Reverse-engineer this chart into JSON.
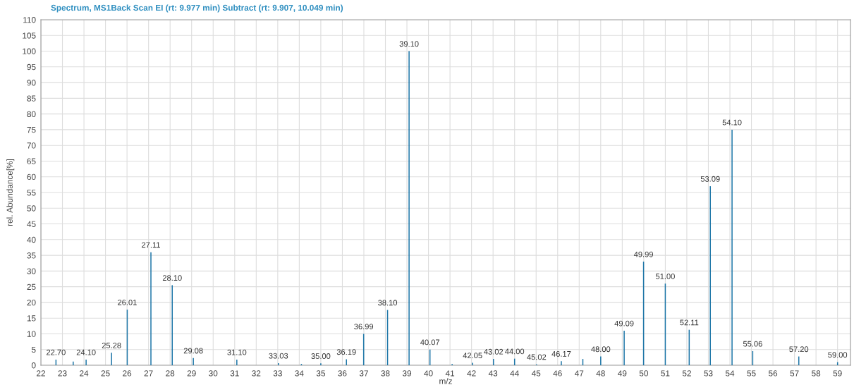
{
  "chart_data": {
    "type": "bar",
    "title": "Spectrum, MS1Back Scan EI (rt: 9.977 min) Subtract (rt: 9.907, 10.049 min)",
    "xlabel": "m/z",
    "ylabel": "rel. Abundance[%]",
    "x": [
      22.7,
      23.5,
      24.1,
      25.28,
      26.01,
      27.11,
      28.1,
      29.08,
      31.1,
      33.03,
      34.1,
      35.0,
      36.19,
      36.99,
      38.1,
      39.1,
      40.07,
      41.1,
      42.05,
      43.02,
      44.0,
      45.02,
      46.17,
      47.17,
      48.0,
      49.09,
      49.99,
      51.0,
      52.11,
      53.09,
      54.1,
      55.06,
      57.2,
      59.0
    ],
    "series": [
      {
        "color": "#1f77a8",
        "values": [
          1.8,
          1.2,
          1.8,
          4.0,
          17.7,
          36,
          25.5,
          2.3,
          1.8,
          0.7,
          0.4,
          0.6,
          1.9,
          10,
          17.6,
          100,
          5,
          0.4,
          0.8,
          2,
          2.1,
          0.3,
          1.3,
          2,
          2.8,
          11,
          33,
          26,
          11.3,
          57,
          75,
          4.5,
          2.8,
          1.0
        ]
      }
    ],
    "annotations": [
      {
        "text": "22.70",
        "x": 22.7,
        "y": 1.8
      },
      {
        "text": "24.10",
        "x": 24.1,
        "y": 1.8
      },
      {
        "text": "25.28",
        "x": 25.28,
        "y": 4.0
      },
      {
        "text": "26.01",
        "x": 26.01,
        "y": 17.7
      },
      {
        "text": "27.11",
        "x": 27.11,
        "y": 36
      },
      {
        "text": "28.10",
        "x": 28.1,
        "y": 25.5
      },
      {
        "text": "29.08",
        "x": 29.08,
        "y": 2.3
      },
      {
        "text": "31.10",
        "x": 31.1,
        "y": 1.8
      },
      {
        "text": "33.03",
        "x": 33.03,
        "y": 0.7
      },
      {
        "text": "35.00",
        "x": 35.0,
        "y": 0.6
      },
      {
        "text": "36.19",
        "x": 36.19,
        "y": 1.9
      },
      {
        "text": "36.99",
        "x": 36.99,
        "y": 10
      },
      {
        "text": "38.10",
        "x": 38.1,
        "y": 17.6
      },
      {
        "text": "39.10",
        "x": 39.1,
        "y": 100
      },
      {
        "text": "40.07",
        "x": 40.07,
        "y": 5
      },
      {
        "text": "42.05",
        "x": 42.05,
        "y": 0.8
      },
      {
        "text": "43.02",
        "x": 43.02,
        "y": 2
      },
      {
        "text": "44.00",
        "x": 44.0,
        "y": 2.1
      },
      {
        "text": "45.02",
        "x": 45.02,
        "y": 0.3
      },
      {
        "text": "46.17",
        "x": 46.17,
        "y": 1.3
      },
      {
        "text": "48.00",
        "x": 48.0,
        "y": 2.8
      },
      {
        "text": "49.09",
        "x": 49.09,
        "y": 11
      },
      {
        "text": "49.99",
        "x": 49.99,
        "y": 33
      },
      {
        "text": "51.00",
        "x": 51.0,
        "y": 26
      },
      {
        "text": "52.11",
        "x": 52.11,
        "y": 11.3
      },
      {
        "text": "53.09",
        "x": 53.09,
        "y": 57
      },
      {
        "text": "54.10",
        "x": 54.1,
        "y": 75
      },
      {
        "text": "55.06",
        "x": 55.06,
        "y": 4.5
      },
      {
        "text": "57.20",
        "x": 57.2,
        "y": 2.8
      },
      {
        "text": "59.00",
        "x": 59.0,
        "y": 1.0
      }
    ],
    "xlim": [
      22,
      59.6
    ],
    "xticks": [
      22,
      23,
      24,
      25,
      26,
      27,
      28,
      29,
      30,
      31,
      32,
      33,
      34,
      35,
      36,
      37,
      38,
      39,
      40,
      41,
      42,
      43,
      44,
      45,
      46,
      47,
      48,
      49,
      50,
      51,
      52,
      53,
      54,
      55,
      56,
      57,
      58,
      59
    ],
    "ylim": [
      0,
      110
    ],
    "yticks": [
      0,
      5,
      10,
      15,
      20,
      25,
      30,
      35,
      40,
      45,
      50,
      55,
      60,
      65,
      70,
      75,
      80,
      85,
      90,
      95,
      100,
      105,
      110
    ],
    "grid": true
  }
}
